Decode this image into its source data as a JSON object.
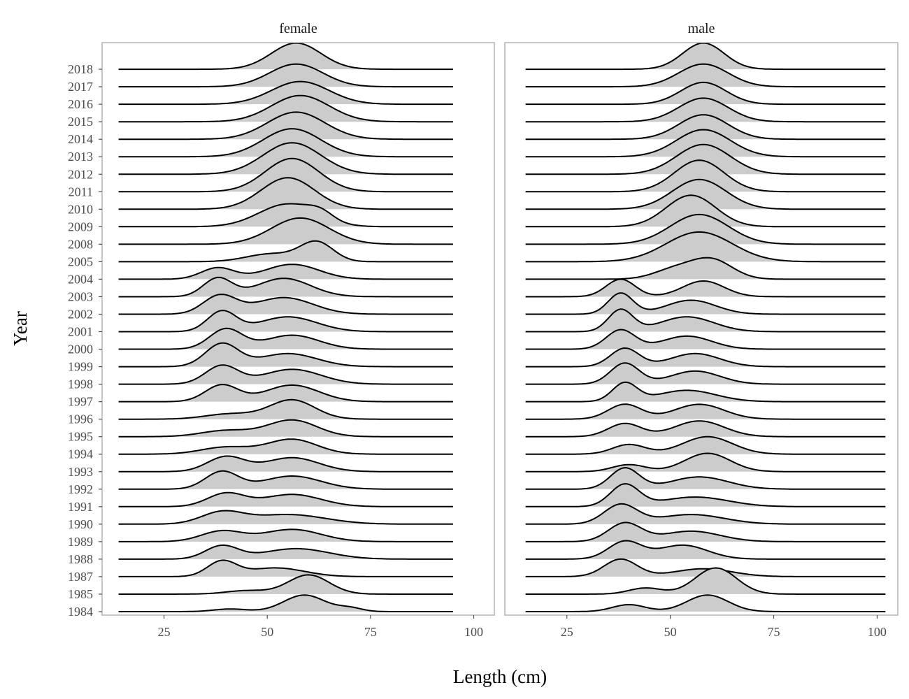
{
  "chart_data": {
    "type": "ridgeline",
    "xlabel": "Length (cm)",
    "ylabel": "Year",
    "xlim": [
      10,
      105
    ],
    "x_ticks": [
      25,
      50,
      75,
      100
    ],
    "x_ticks_labels": [
      "25",
      "50",
      "75",
      "100"
    ],
    "years": [
      "1984",
      "1985",
      "1987",
      "1988",
      "1989",
      "1990",
      "1991",
      "1992",
      "1993",
      "1994",
      "1995",
      "1996",
      "1997",
      "1998",
      "1999",
      "2000",
      "2001",
      "2002",
      "2003",
      "2004",
      "2005",
      "2008",
      "2009",
      "2010",
      "2011",
      "2012",
      "2013",
      "2014",
      "2015",
      "2016",
      "2017",
      "2018"
    ],
    "fill_color": "#cccccc",
    "line_color": "#000000",
    "panels": [
      {
        "name": "female",
        "x_range": [
          14,
          95
        ],
        "densities": {
          "1984": [
            {
              "mu": 41,
              "sd": 4,
              "h": 0.15
            },
            {
              "mu": 59,
              "sd": 5,
              "h": 0.95
            },
            {
              "mu": 70,
              "sd": 3,
              "h": 0.2
            }
          ],
          "1985": [
            {
              "mu": 45,
              "sd": 5,
              "h": 0.2
            },
            {
              "mu": 60,
              "sd": 5,
              "h": 1.1
            }
          ],
          "1987": [
            {
              "mu": 39,
              "sd": 3.5,
              "h": 0.85
            },
            {
              "mu": 52,
              "sd": 7,
              "h": 0.5
            }
          ],
          "1988": [
            {
              "mu": 39,
              "sd": 4,
              "h": 0.75
            },
            {
              "mu": 57,
              "sd": 8,
              "h": 0.6
            }
          ],
          "1989": [
            {
              "mu": 39,
              "sd": 5,
              "h": 0.6
            },
            {
              "mu": 56,
              "sd": 7,
              "h": 0.7
            }
          ],
          "1990": [
            {
              "mu": 39,
              "sd": 5,
              "h": 0.65
            },
            {
              "mu": 55,
              "sd": 9,
              "h": 0.55
            }
          ],
          "1991": [
            {
              "mu": 40,
              "sd": 4.5,
              "h": 0.75
            },
            {
              "mu": 56,
              "sd": 7,
              "h": 0.7
            }
          ],
          "1992": [
            {
              "mu": 39,
              "sd": 4,
              "h": 1.0
            },
            {
              "mu": 56,
              "sd": 7,
              "h": 0.75
            }
          ],
          "1993": [
            {
              "mu": 40,
              "sd": 4.5,
              "h": 0.85
            },
            {
              "mu": 56,
              "sd": 6.5,
              "h": 0.8
            }
          ],
          "1994": [
            {
              "mu": 40,
              "sd": 6,
              "h": 0.4
            },
            {
              "mu": 56,
              "sd": 6,
              "h": 0.85
            }
          ],
          "1995": [
            {
              "mu": 40,
              "sd": 6,
              "h": 0.35
            },
            {
              "mu": 56,
              "sd": 6,
              "h": 0.95
            }
          ],
          "1996": [
            {
              "mu": 41,
              "sd": 6,
              "h": 0.3
            },
            {
              "mu": 56,
              "sd": 5.5,
              "h": 1.1
            }
          ],
          "1997": [
            {
              "mu": 39,
              "sd": 4,
              "h": 0.95
            },
            {
              "mu": 56,
              "sd": 6.5,
              "h": 0.95
            }
          ],
          "1998": [
            {
              "mu": 39,
              "sd": 4,
              "h": 1.05
            },
            {
              "mu": 56,
              "sd": 7,
              "h": 0.85
            }
          ],
          "1999": [
            {
              "mu": 39,
              "sd": 4,
              "h": 1.3
            },
            {
              "mu": 55,
              "sd": 7,
              "h": 0.75
            }
          ],
          "2000": [
            {
              "mu": 40,
              "sd": 4,
              "h": 1.15
            },
            {
              "mu": 56,
              "sd": 6.5,
              "h": 0.8
            }
          ],
          "2001": [
            {
              "mu": 39,
              "sd": 3.5,
              "h": 1.15
            },
            {
              "mu": 55,
              "sd": 7,
              "h": 0.85
            }
          ],
          "2002": [
            {
              "mu": 38.5,
              "sd": 4,
              "h": 1.05
            },
            {
              "mu": 54,
              "sd": 7,
              "h": 0.95
            }
          ],
          "2003": [
            {
              "mu": 38,
              "sd": 3.5,
              "h": 1.05
            },
            {
              "mu": 54,
              "sd": 6.5,
              "h": 1.05
            }
          ],
          "2004": [
            {
              "mu": 38,
              "sd": 4,
              "h": 0.65
            },
            {
              "mu": 56,
              "sd": 6.5,
              "h": 0.85
            }
          ],
          "2005": [
            {
              "mu": 51,
              "sd": 6,
              "h": 0.45
            },
            {
              "mu": 62,
              "sd": 4,
              "h": 1.1
            }
          ],
          "2008": [
            {
              "mu": 58,
              "sd": 7,
              "h": 1.5
            }
          ],
          "2009": [
            {
              "mu": 55,
              "sd": 7,
              "h": 1.3
            },
            {
              "mu": 63,
              "sd": 3,
              "h": 0.4
            }
          ],
          "2010": [
            {
              "mu": 55,
              "sd": 6.5,
              "h": 1.8
            }
          ],
          "2011": [
            {
              "mu": 56,
              "sd": 6.5,
              "h": 1.9
            }
          ],
          "2012": [
            {
              "mu": 56,
              "sd": 7,
              "h": 1.8
            }
          ],
          "2013": [
            {
              "mu": 56,
              "sd": 7,
              "h": 1.6
            }
          ],
          "2014": [
            {
              "mu": 57,
              "sd": 7,
              "h": 1.55
            }
          ],
          "2015": [
            {
              "mu": 58,
              "sd": 7,
              "h": 1.5
            }
          ],
          "2016": [
            {
              "mu": 58,
              "sd": 7,
              "h": 1.3
            }
          ],
          "2017": [
            {
              "mu": 57,
              "sd": 6.5,
              "h": 1.3
            }
          ],
          "2018": [
            {
              "mu": 57,
              "sd": 6,
              "h": 1.5
            }
          ]
        }
      },
      {
        "name": "male",
        "x_range": [
          15,
          102
        ],
        "densities": {
          "1984": [
            {
              "mu": 40,
              "sd": 4,
              "h": 0.4
            },
            {
              "mu": 59,
              "sd": 5,
              "h": 0.95
            }
          ],
          "1985": [
            {
              "mu": 44,
              "sd": 4,
              "h": 0.35
            },
            {
              "mu": 61,
              "sd": 5,
              "h": 1.5
            }
          ],
          "1987": [
            {
              "mu": 38,
              "sd": 4,
              "h": 1.0
            },
            {
              "mu": 58,
              "sd": 7,
              "h": 0.45
            }
          ],
          "1988": [
            {
              "mu": 39,
              "sd": 4,
              "h": 1.0
            },
            {
              "mu": 53,
              "sd": 6,
              "h": 0.8
            }
          ],
          "1989": [
            {
              "mu": 39,
              "sd": 4,
              "h": 1.05
            },
            {
              "mu": 55,
              "sd": 7,
              "h": 0.6
            }
          ],
          "1990": [
            {
              "mu": 38,
              "sd": 4,
              "h": 1.1
            },
            {
              "mu": 55,
              "sd": 8,
              "h": 0.55
            }
          ],
          "1991": [
            {
              "mu": 39,
              "sd": 3.5,
              "h": 1.25
            },
            {
              "mu": 56,
              "sd": 8,
              "h": 0.55
            }
          ],
          "1992": [
            {
              "mu": 39,
              "sd": 3.5,
              "h": 1.2
            },
            {
              "mu": 57,
              "sd": 7,
              "h": 0.7
            }
          ],
          "1993": [
            {
              "mu": 40,
              "sd": 4,
              "h": 0.4
            },
            {
              "mu": 59,
              "sd": 5.5,
              "h": 1.05
            }
          ],
          "1994": [
            {
              "mu": 40,
              "sd": 4,
              "h": 0.55
            },
            {
              "mu": 59,
              "sd": 6,
              "h": 1.0
            }
          ],
          "1995": [
            {
              "mu": 39,
              "sd": 4,
              "h": 0.75
            },
            {
              "mu": 57,
              "sd": 6,
              "h": 0.9
            }
          ],
          "1996": [
            {
              "mu": 39,
              "sd": 4,
              "h": 0.85
            },
            {
              "mu": 57,
              "sd": 6,
              "h": 0.85
            }
          ],
          "1997": [
            {
              "mu": 39,
              "sd": 3,
              "h": 1.05
            },
            {
              "mu": 54,
              "sd": 7,
              "h": 0.65
            }
          ],
          "1998": [
            {
              "mu": 39,
              "sd": 3.5,
              "h": 1.2
            },
            {
              "mu": 56,
              "sd": 6,
              "h": 0.75
            }
          ],
          "1999": [
            {
              "mu": 39,
              "sd": 3.5,
              "h": 1.05
            },
            {
              "mu": 56,
              "sd": 6,
              "h": 0.75
            }
          ],
          "2000": [
            {
              "mu": 38,
              "sd": 3.5,
              "h": 1.1
            },
            {
              "mu": 54,
              "sd": 6,
              "h": 0.75
            }
          ],
          "2001": [
            {
              "mu": 38,
              "sd": 3,
              "h": 1.25
            },
            {
              "mu": 54,
              "sd": 6.5,
              "h": 0.85
            }
          ],
          "2002": [
            {
              "mu": 38,
              "sd": 3,
              "h": 1.2
            },
            {
              "mu": 55,
              "sd": 6,
              "h": 0.8
            }
          ],
          "2003": [
            {
              "mu": 38,
              "sd": 3.5,
              "h": 1.0
            },
            {
              "mu": 58,
              "sd": 5,
              "h": 0.9
            }
          ],
          "2004": [
            {
              "mu": 51,
              "sd": 5,
              "h": 0.55
            },
            {
              "mu": 60,
              "sd": 5,
              "h": 1.1
            }
          ],
          "2005": [
            {
              "mu": 57,
              "sd": 8,
              "h": 1.7
            }
          ],
          "2008": [
            {
              "mu": 57,
              "sd": 7,
              "h": 1.7
            }
          ],
          "2009": [
            {
              "mu": 55,
              "sd": 6,
              "h": 1.8
            }
          ],
          "2010": [
            {
              "mu": 57,
              "sd": 6.5,
              "h": 1.7
            }
          ],
          "2011": [
            {
              "mu": 57,
              "sd": 6,
              "h": 1.8
            }
          ],
          "2012": [
            {
              "mu": 58,
              "sd": 6.5,
              "h": 1.7
            }
          ],
          "2013": [
            {
              "mu": 58,
              "sd": 6.5,
              "h": 1.55
            }
          ],
          "2014": [
            {
              "mu": 58,
              "sd": 6,
              "h": 1.4
            }
          ],
          "2015": [
            {
              "mu": 58,
              "sd": 6,
              "h": 1.35
            }
          ],
          "2016": [
            {
              "mu": 58,
              "sd": 5.5,
              "h": 1.25
            }
          ],
          "2017": [
            {
              "mu": 58,
              "sd": 6,
              "h": 1.3
            }
          ],
          "2018": [
            {
              "mu": 58,
              "sd": 5,
              "h": 1.5
            }
          ]
        }
      }
    ]
  }
}
